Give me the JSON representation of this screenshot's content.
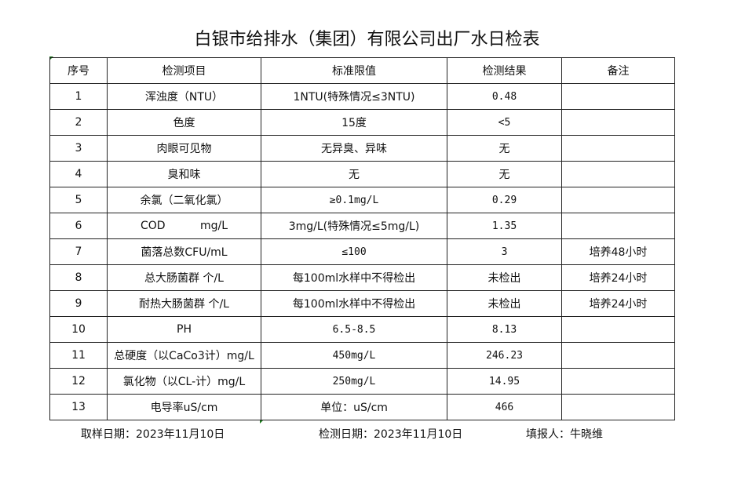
{
  "title": "白银市给排水（集团）有限公司出厂水日检表",
  "table": {
    "headers": [
      "序号",
      "检测项目",
      "标准限值",
      "检测结果",
      "备注"
    ],
    "rows": [
      [
        "1",
        "浑浊度（NTU）",
        "1NTU(特殊情况≤3NTU)",
        "0.48",
        ""
      ],
      [
        "2",
        "色度",
        "15度",
        "<5",
        ""
      ],
      [
        "3",
        "肉眼可见物",
        "无异臭、异味",
        "无",
        ""
      ],
      [
        "4",
        "臭和味",
        "无",
        "无",
        ""
      ],
      [
        "5",
        "余氯（二氧化氯）",
        "≥0.1mg/L",
        "0.29",
        ""
      ],
      [
        "6",
        "COD          mg/L",
        "3mg/L(特殊情况≤5mg/L)",
        "1.35",
        ""
      ],
      [
        "7",
        "菌落总数CFU/mL",
        "≤100",
        "3",
        "培养48小时"
      ],
      [
        "8",
        "总大肠菌群 个/L",
        "每100ml水样中不得检出",
        "未检出",
        "培养24小时"
      ],
      [
        "9",
        "耐热大肠菌群 个/L",
        "每100ml水样中不得检出",
        "未检出",
        "培养24小时"
      ],
      [
        "10",
        "PH",
        "6.5-8.5",
        "8.13",
        ""
      ],
      [
        "11",
        "总硬度（以CaCo3计）mg/L",
        "450mg/L",
        "246.23",
        ""
      ],
      [
        "12",
        "氯化物（以CL-计）mg/L",
        "250mg/L",
        "14.95",
        ""
      ],
      [
        "13",
        "电导率uS/cm",
        "单位：uS/cm",
        "466",
        ""
      ]
    ]
  },
  "footer": {
    "sampling_date": "取样日期：2023年11月10日",
    "test_date": "检测日期：2023年11月10日",
    "reporter": "填报人：牛晓维"
  }
}
